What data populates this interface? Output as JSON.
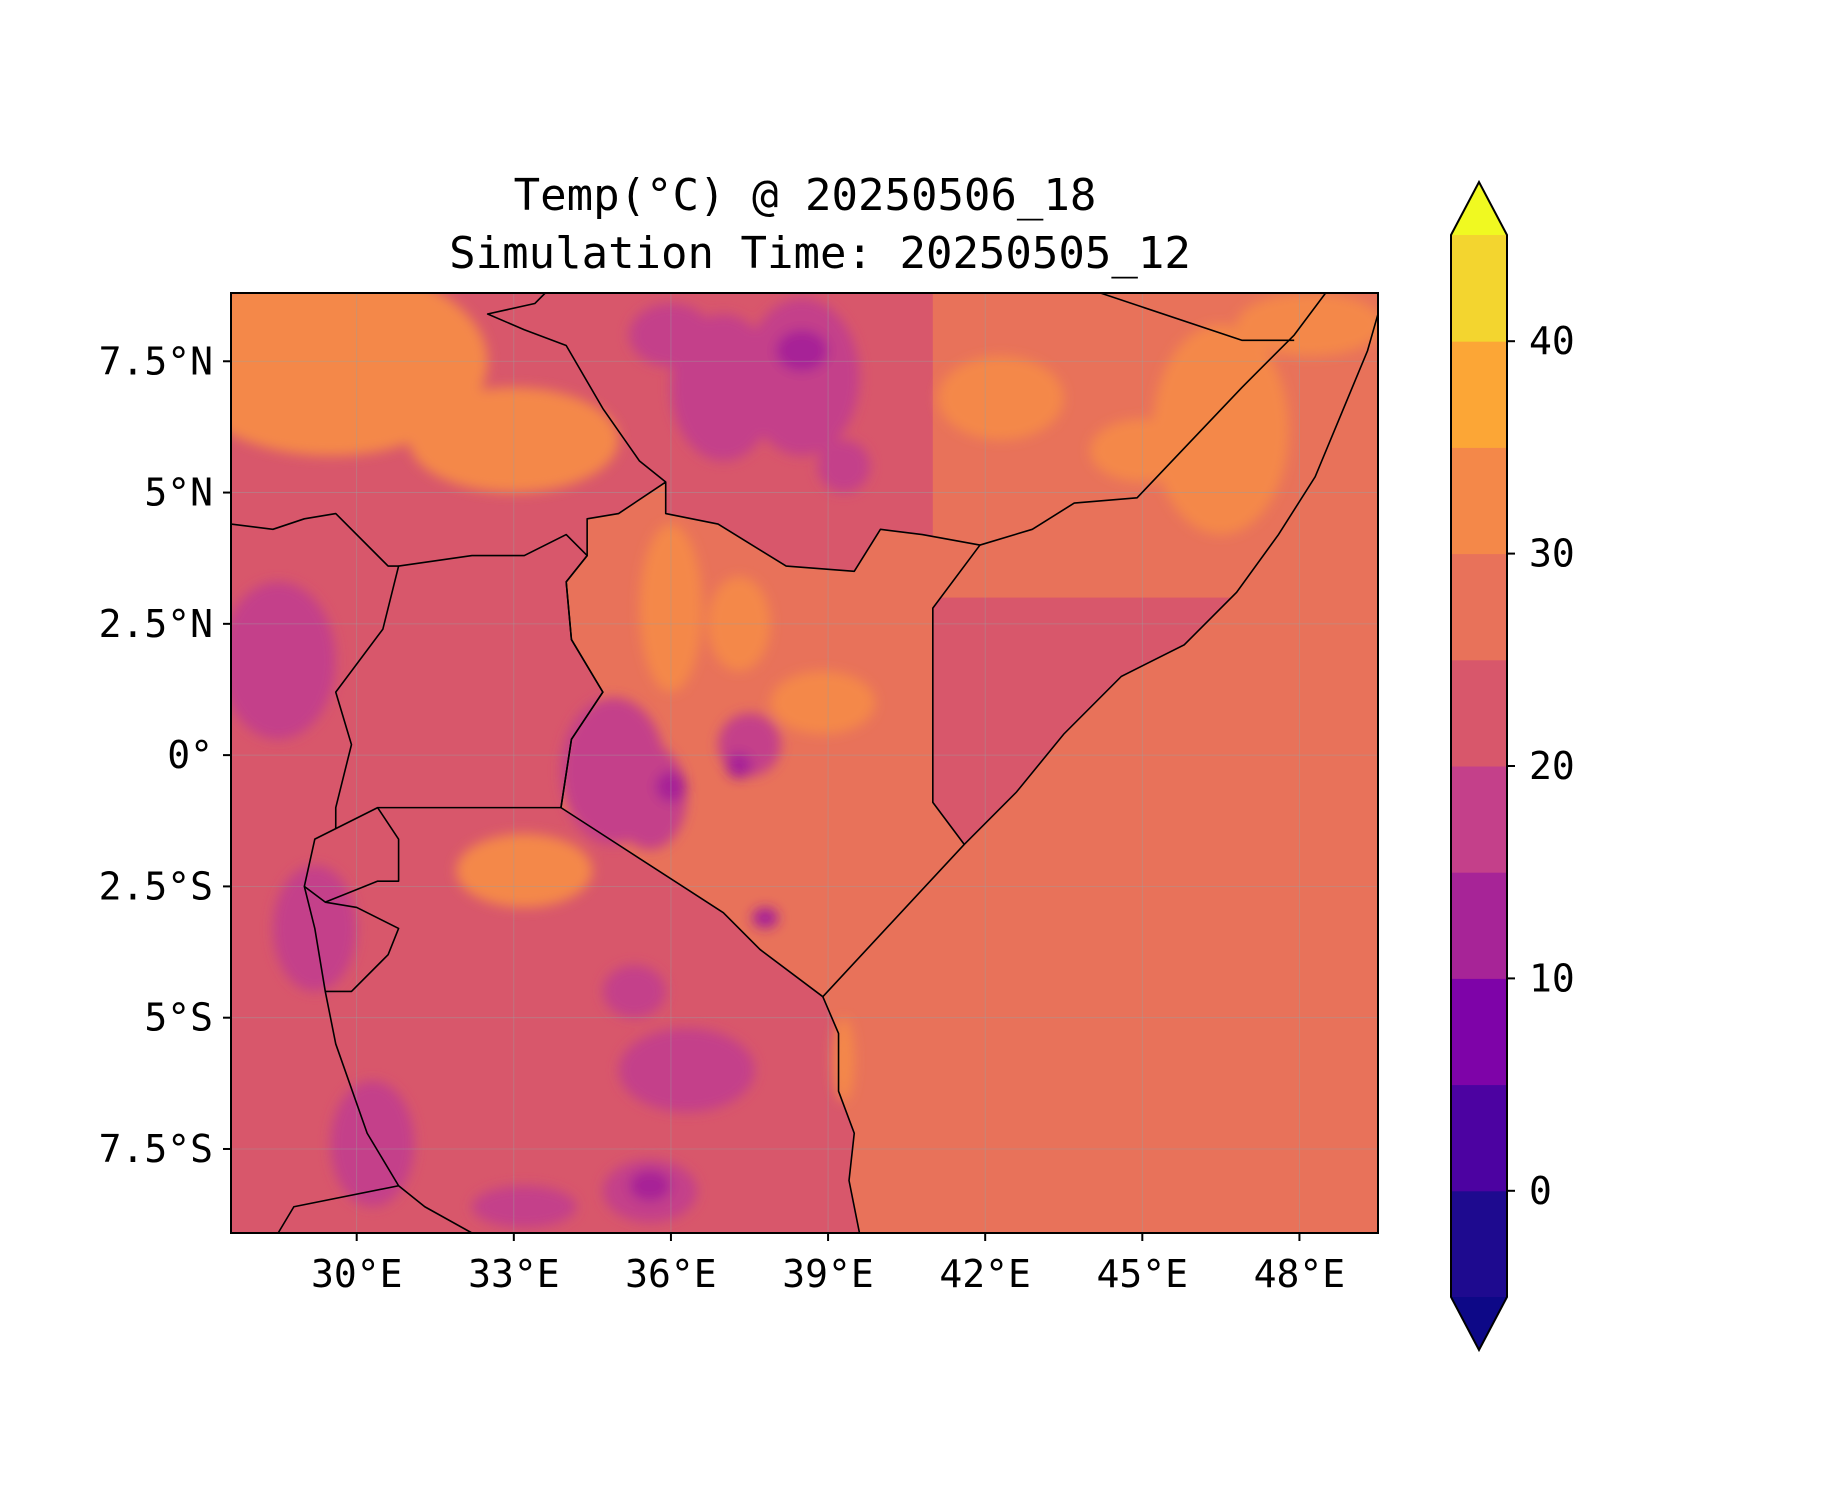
{
  "title": {
    "line1": "Temp(°C) @ 20250506_18",
    "line2": "Simulation Time: 20250505_12"
  },
  "map": {
    "region": "East Africa",
    "lon_range": [
      27.6,
      49.5
    ],
    "lat_range": [
      -9.1,
      8.8
    ],
    "lon_ticks": [
      {
        "value": 30,
        "label": "30°E"
      },
      {
        "value": 33,
        "label": "33°E"
      },
      {
        "value": 36,
        "label": "36°E"
      },
      {
        "value": 39,
        "label": "39°E"
      },
      {
        "value": 42,
        "label": "42°E"
      },
      {
        "value": 45,
        "label": "45°E"
      },
      {
        "value": 48,
        "label": "48°E"
      }
    ],
    "lat_ticks": [
      {
        "value": 7.5,
        "label": "7.5°N"
      },
      {
        "value": 5,
        "label": "5°N"
      },
      {
        "value": 2.5,
        "label": "2.5°N"
      },
      {
        "value": 0,
        "label": "0°"
      },
      {
        "value": -2.5,
        "label": "2.5°S"
      },
      {
        "value": -5,
        "label": "5°S"
      },
      {
        "value": -7.5,
        "label": "7.5°S"
      }
    ],
    "gridlines": true,
    "ocean_value": 27,
    "borders": [
      [
        [
          38.9,
          -4.6
        ],
        [
          41.6,
          -1.7
        ],
        [
          41.0,
          -0.9
        ],
        [
          41.0,
          2.8
        ],
        [
          41.9,
          4.0
        ],
        [
          40.8,
          4.2
        ],
        [
          40.0,
          4.3
        ],
        [
          39.5,
          3.5
        ],
        [
          38.2,
          3.6
        ],
        [
          36.9,
          4.4
        ],
        [
          35.9,
          4.6
        ],
        [
          35.9,
          5.2
        ],
        [
          35.0,
          4.6
        ],
        [
          34.4,
          4.5
        ],
        [
          34.4,
          3.8
        ],
        [
          34.0,
          3.3
        ],
        [
          34.1,
          2.2
        ],
        [
          34.7,
          1.2
        ],
        [
          34.1,
          0.3
        ],
        [
          33.9,
          -1.0
        ],
        [
          37.0,
          -3.0
        ],
        [
          37.7,
          -3.7
        ],
        [
          38.9,
          -4.6
        ]
      ],
      [
        [
          33.9,
          -1.0
        ],
        [
          30.4,
          -1.0
        ],
        [
          29.6,
          -1.4
        ],
        [
          29.6,
          -1.0
        ],
        [
          29.9,
          0.2
        ],
        [
          29.6,
          1.2
        ],
        [
          30.5,
          2.4
        ],
        [
          30.8,
          3.6
        ],
        [
          32.2,
          3.8
        ],
        [
          33.2,
          3.8
        ],
        [
          34.0,
          4.2
        ],
        [
          34.4,
          3.8
        ],
        [
          34.0,
          3.3
        ],
        [
          34.1,
          2.2
        ],
        [
          34.7,
          1.2
        ],
        [
          34.1,
          0.3
        ],
        [
          33.9,
          -1.0
        ]
      ],
      [
        [
          27.6,
          4.4
        ],
        [
          28.4,
          4.3
        ],
        [
          29.0,
          4.5
        ],
        [
          29.6,
          4.6
        ],
        [
          30.6,
          3.6
        ],
        [
          30.8,
          3.6
        ]
      ],
      [
        [
          30.4,
          -1.0
        ],
        [
          30.8,
          -1.6
        ],
        [
          30.8,
          -2.4
        ],
        [
          30.4,
          -2.4
        ],
        [
          29.4,
          -2.8
        ],
        [
          29.0,
          -2.5
        ],
        [
          29.2,
          -1.6
        ],
        [
          29.6,
          -1.4
        ]
      ],
      [
        [
          29.4,
          -2.8
        ],
        [
          30.0,
          -2.9
        ],
        [
          30.8,
          -3.3
        ],
        [
          30.6,
          -3.8
        ],
        [
          29.9,
          -4.5
        ],
        [
          29.4,
          -4.5
        ],
        [
          29.2,
          -3.3
        ],
        [
          29.0,
          -2.5
        ]
      ],
      [
        [
          29.4,
          -4.5
        ],
        [
          29.6,
          -5.5
        ],
        [
          30.2,
          -7.2
        ],
        [
          30.8,
          -8.2
        ],
        [
          31.3,
          -8.6
        ],
        [
          32.2,
          -9.1
        ]
      ],
      [
        [
          28.5,
          -9.1
        ],
        [
          28.8,
          -8.6
        ],
        [
          30.8,
          -8.2
        ]
      ],
      [
        [
          35.9,
          5.2
        ],
        [
          35.4,
          5.6
        ],
        [
          34.7,
          6.6
        ],
        [
          34.0,
          7.8
        ],
        [
          33.2,
          8.1
        ],
        [
          32.5,
          8.4
        ],
        [
          33.4,
          8.6
        ],
        [
          33.6,
          8.8
        ]
      ],
      [
        [
          41.9,
          4.0
        ],
        [
          42.9,
          4.3
        ],
        [
          43.7,
          4.8
        ],
        [
          44.9,
          4.9
        ],
        [
          46.9,
          7.0
        ],
        [
          47.9,
          8.0
        ],
        [
          48.5,
          8.8
        ]
      ],
      [
        [
          44.2,
          8.8
        ],
        [
          46.9,
          7.9
        ],
        [
          47.9,
          7.9
        ]
      ]
    ],
    "coastline": [
      [
        38.9,
        -4.6
      ],
      [
        39.2,
        -5.3
      ],
      [
        39.2,
        -6.4
      ],
      [
        39.5,
        -7.2
      ],
      [
        39.4,
        -8.1
      ],
      [
        39.6,
        -9.1
      ],
      null,
      [
        41.6,
        -1.7
      ],
      [
        42.6,
        -0.7
      ],
      [
        43.5,
        0.4
      ],
      [
        44.6,
        1.5
      ],
      [
        45.8,
        2.1
      ],
      [
        46.8,
        3.1
      ],
      [
        47.6,
        4.2
      ],
      [
        48.3,
        5.3
      ],
      [
        48.8,
        6.5
      ],
      [
        49.3,
        7.7
      ],
      [
        49.5,
        8.4
      ]
    ],
    "hot_zones": [
      {
        "lon": 29.5,
        "lat": 7.5,
        "rx": 3.0,
        "ry": 1.8,
        "value": 32
      },
      {
        "lon": 33.0,
        "lat": 6.0,
        "rx": 2.0,
        "ry": 1.0,
        "value": 32
      },
      {
        "lon": 36.0,
        "lat": 2.8,
        "rx": 0.6,
        "ry": 1.6,
        "value": 32
      },
      {
        "lon": 37.3,
        "lat": 2.5,
        "rx": 0.6,
        "ry": 0.9,
        "value": 32
      },
      {
        "lon": 38.9,
        "lat": 1.0,
        "rx": 1.0,
        "ry": 0.6,
        "value": 32
      },
      {
        "lon": 42.3,
        "lat": 6.8,
        "rx": 1.2,
        "ry": 0.8,
        "value": 32
      },
      {
        "lon": 46.5,
        "lat": 6.2,
        "rx": 1.3,
        "ry": 2.0,
        "value": 32
      },
      {
        "lon": 48.2,
        "lat": 8.2,
        "rx": 1.4,
        "ry": 0.6,
        "value": 32
      },
      {
        "lon": 45.0,
        "lat": 5.8,
        "rx": 1.0,
        "ry": 0.6,
        "value": 32
      },
      {
        "lon": 33.2,
        "lat": -2.2,
        "rx": 1.3,
        "ry": 0.7,
        "value": 32
      },
      {
        "lon": 39.3,
        "lat": -5.8,
        "rx": 0.2,
        "ry": 0.8,
        "value": 32
      }
    ],
    "cool_zones": [
      {
        "lon": 28.5,
        "lat": 1.8,
        "rx": 1.1,
        "ry": 1.5,
        "value": 18
      },
      {
        "lon": 29.2,
        "lat": -3.3,
        "rx": 0.8,
        "ry": 1.2,
        "value": 18
      },
      {
        "lon": 34.9,
        "lat": -0.3,
        "rx": 1.0,
        "ry": 1.4,
        "value": 18
      },
      {
        "lon": 35.6,
        "lat": -0.8,
        "rx": 0.7,
        "ry": 1.0,
        "value": 18
      },
      {
        "lon": 37.5,
        "lat": 0.2,
        "rx": 0.6,
        "ry": 0.6,
        "value": 18
      },
      {
        "lon": 35.3,
        "lat": -4.5,
        "rx": 0.6,
        "ry": 0.5,
        "value": 18
      },
      {
        "lon": 36.3,
        "lat": -6.0,
        "rx": 1.3,
        "ry": 0.8,
        "value": 18
      },
      {
        "lon": 35.6,
        "lat": -8.3,
        "rx": 0.9,
        "ry": 0.6,
        "value": 18
      },
      {
        "lon": 30.3,
        "lat": -7.4,
        "rx": 0.8,
        "ry": 1.2,
        "value": 18
      },
      {
        "lon": 33.2,
        "lat": -8.6,
        "rx": 1.0,
        "ry": 0.4,
        "value": 18
      },
      {
        "lon": 36.0,
        "lat": 8.0,
        "rx": 0.8,
        "ry": 0.6,
        "value": 18
      },
      {
        "lon": 37.0,
        "lat": 7.0,
        "rx": 1.0,
        "ry": 1.4,
        "value": 18
      },
      {
        "lon": 38.5,
        "lat": 7.2,
        "rx": 1.1,
        "ry": 1.5,
        "value": 18
      },
      {
        "lon": 39.3,
        "lat": 5.5,
        "rx": 0.5,
        "ry": 0.5,
        "value": 18
      },
      {
        "lon": 38.5,
        "lat": 7.7,
        "rx": 0.5,
        "ry": 0.4,
        "value": 12
      },
      {
        "lon": 36.0,
        "lat": -0.6,
        "rx": 0.3,
        "ry": 0.3,
        "value": 12
      },
      {
        "lon": 37.3,
        "lat": -0.2,
        "rx": 0.25,
        "ry": 0.25,
        "value": 12
      },
      {
        "lon": 35.6,
        "lat": -8.2,
        "rx": 0.4,
        "ry": 0.3,
        "value": 12
      },
      {
        "lon": 37.8,
        "lat": -3.1,
        "rx": 0.25,
        "ry": 0.2,
        "value": 12
      }
    ]
  },
  "colorbar": {
    "levels": [
      -5,
      0,
      5,
      10,
      15,
      20,
      25,
      30,
      35,
      40,
      45
    ],
    "colors": [
      "#1e0a8f",
      "#4c02a1",
      "#7e03a8",
      "#a72497",
      "#c4408a",
      "#d8576b",
      "#e8725a",
      "#f48849",
      "#fca636",
      "#f3d52f"
    ],
    "under_color": "#0d0887",
    "over_color": "#f0f921",
    "ticks": [
      {
        "value": 0,
        "label": "0"
      },
      {
        "value": 10,
        "label": "10"
      },
      {
        "value": 20,
        "label": "20"
      },
      {
        "value": 30,
        "label": "30"
      },
      {
        "value": 40,
        "label": "40"
      }
    ]
  }
}
